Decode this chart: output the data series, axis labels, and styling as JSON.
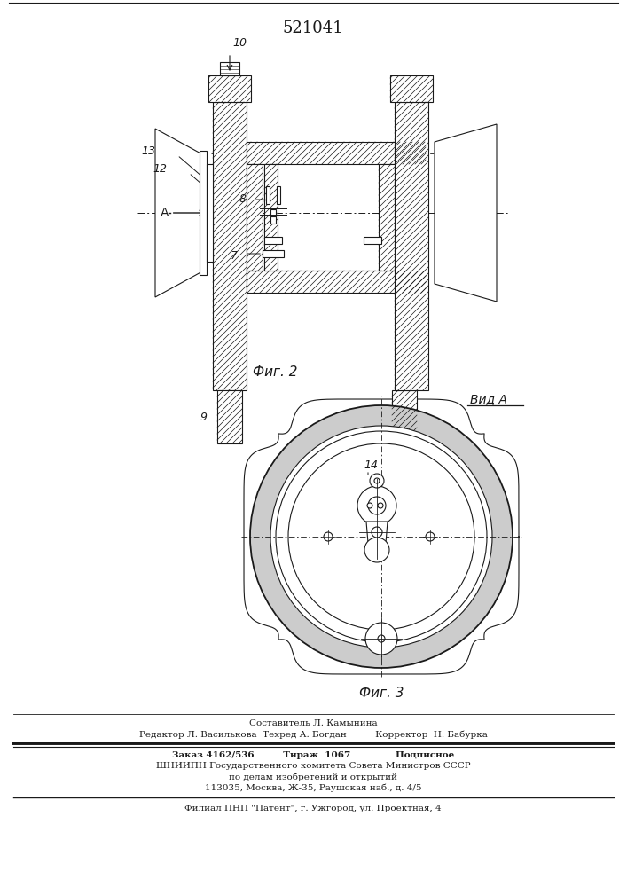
{
  "patent_number": "521041",
  "fig2_label": "Фиг. 2",
  "fig3_label": "Фиг. 3",
  "vid_a_label": "Вид А",
  "line_color": "#1a1a1a",
  "hatch_color": "#1a1a1a"
}
